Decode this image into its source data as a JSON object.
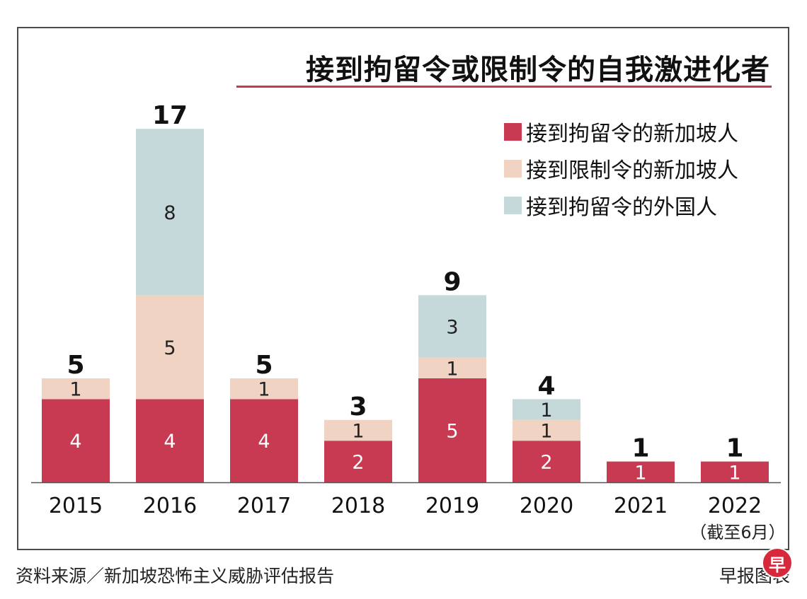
{
  "title": "接到拘留令或限制令的自我激进化者",
  "source": "资料来源／新加坡恐怖主义威胁评估报告",
  "credit": "早报图表",
  "logo_char": "早",
  "colors": {
    "singapore_detention": "#c73a52",
    "singapore_restriction": "#f1d3c3",
    "foreign_detention": "#c6d9da",
    "accent_rule": "#c73a52"
  },
  "legend": [
    {
      "label": "接到拘留令的新加坡人",
      "color_key": "singapore_detention"
    },
    {
      "label": "接到限制令的新加坡人",
      "color_key": "singapore_restriction"
    },
    {
      "label": "接到拘留令的外国人",
      "color_key": "foreign_detention"
    }
  ],
  "chart_data": {
    "type": "bar",
    "stacked": true,
    "title": "接到拘留令或限制令的自我激进化者",
    "categories": [
      "2015",
      "2016",
      "2017",
      "2018",
      "2019",
      "2020",
      "2021",
      "2022"
    ],
    "category_notes": [
      "",
      "",
      "",
      "",
      "",
      "",
      "",
      "（截至6月）"
    ],
    "series": [
      {
        "name": "接到拘留令的新加坡人",
        "color_key": "singapore_detention",
        "label_color": "#ffffff",
        "values": [
          4,
          4,
          4,
          2,
          5,
          2,
          1,
          1
        ]
      },
      {
        "name": "接到限制令的新加坡人",
        "color_key": "singapore_restriction",
        "label_color": "#222222",
        "values": [
          1,
          5,
          1,
          1,
          1,
          1,
          0,
          0
        ]
      },
      {
        "name": "接到拘留令的外国人",
        "color_key": "foreign_detention",
        "label_color": "#222222",
        "values": [
          0,
          8,
          0,
          0,
          3,
          1,
          0,
          0
        ]
      }
    ],
    "totals": [
      5,
      17,
      5,
      3,
      9,
      4,
      1,
      1
    ],
    "ylim": [
      0,
      17
    ],
    "xlabel": "",
    "ylabel": "",
    "grid": false,
    "legend_position": "top-right"
  }
}
